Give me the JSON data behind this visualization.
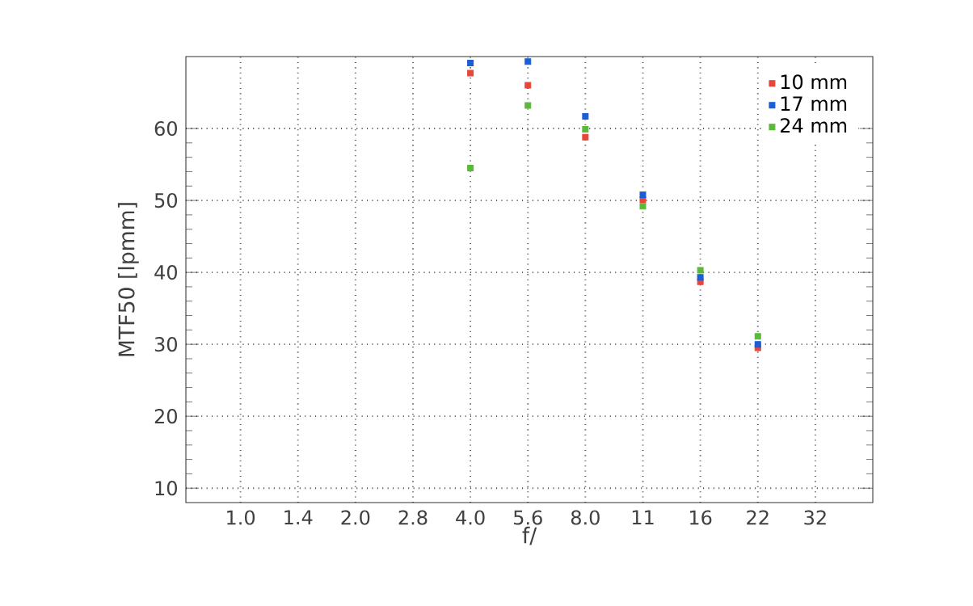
{
  "chart_data": {
    "type": "scatter",
    "xlabel": "f/",
    "ylabel": "MTF50 [lpmm]",
    "categories": [
      "1.0",
      "1.4",
      "2.0",
      "2.8",
      "4.0",
      "5.6",
      "8.0",
      "11",
      "16",
      "22",
      "32"
    ],
    "series": [
      {
        "name": "10 mm",
        "color": "#e8463a",
        "values": [
          null,
          null,
          null,
          null,
          67.7,
          66.0,
          58.8,
          50.1,
          38.7,
          29.5,
          null
        ]
      },
      {
        "name": "17 mm",
        "color": "#1a5fd6",
        "values": [
          null,
          null,
          null,
          null,
          69.1,
          69.3,
          61.7,
          50.8,
          39.3,
          30.0,
          null
        ]
      },
      {
        "name": "24 mm",
        "color": "#5cb83a",
        "values": [
          null,
          null,
          null,
          null,
          54.5,
          63.2,
          59.9,
          49.2,
          40.3,
          31.1,
          null
        ]
      }
    ],
    "ylim": [
      8,
      70
    ],
    "yticks": [
      10,
      20,
      30,
      40,
      50,
      60
    ],
    "grid": true,
    "legend": "top right",
    "marker": "square"
  }
}
